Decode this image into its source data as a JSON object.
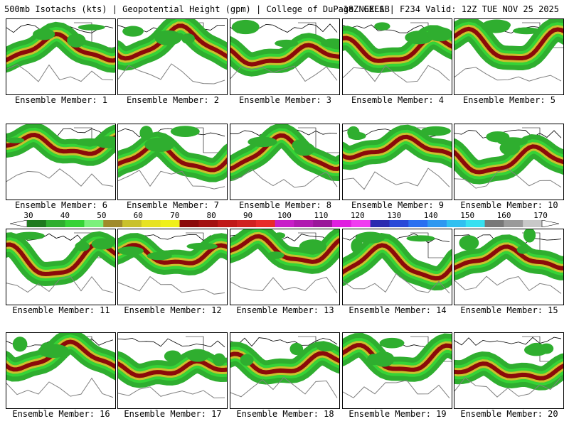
{
  "header": {
    "left": "500mb Isotachs (kts) | Geopotential Height (gpm) | College of DuPage NEXLAB",
    "right": "18Z GEFS | F234 Valid: 12Z TUE NOV 25 2025"
  },
  "colorbar": {
    "labels": [
      "30",
      "40",
      "50",
      "60",
      "70",
      "80",
      "90",
      "100",
      "110",
      "120",
      "130",
      "140",
      "150",
      "160",
      "170"
    ],
    "colors": [
      "#1e7a1e",
      "#2fae2f",
      "#36d336",
      "#7cf07c",
      "#a08a2a",
      "#c9c12c",
      "#e7e222",
      "#f0f01a",
      "#8b0a0a",
      "#a31010",
      "#c01818",
      "#d02020",
      "#e82a2a",
      "#c81ec8",
      "#b01ab0",
      "#9a169a",
      "#e01ee0",
      "#f03cf0",
      "#2a2ab0",
      "#2848d8",
      "#2a70f0",
      "#2e98f0",
      "#30c0f0",
      "#38e0f0",
      "#787878",
      "#9a9a9a",
      "#c8c8c8"
    ]
  },
  "members": [
    "Ensemble Member: 1",
    "Ensemble Member: 2",
    "Ensemble Member: 3",
    "Ensemble Member: 4",
    "Ensemble Member: 5",
    "Ensemble Member: 6",
    "Ensemble Member: 7",
    "Ensemble Member: 8",
    "Ensemble Member: 9",
    "Ensemble Member: 10",
    "Ensemble Member: 11",
    "Ensemble Member: 12",
    "Ensemble Member: 13",
    "Ensemble Member: 14",
    "Ensemble Member: 15",
    "Ensemble Member: 16",
    "Ensemble Member: 17",
    "Ensemble Member: 18",
    "Ensemble Member: 19",
    "Ensemble Member: 20"
  ]
}
